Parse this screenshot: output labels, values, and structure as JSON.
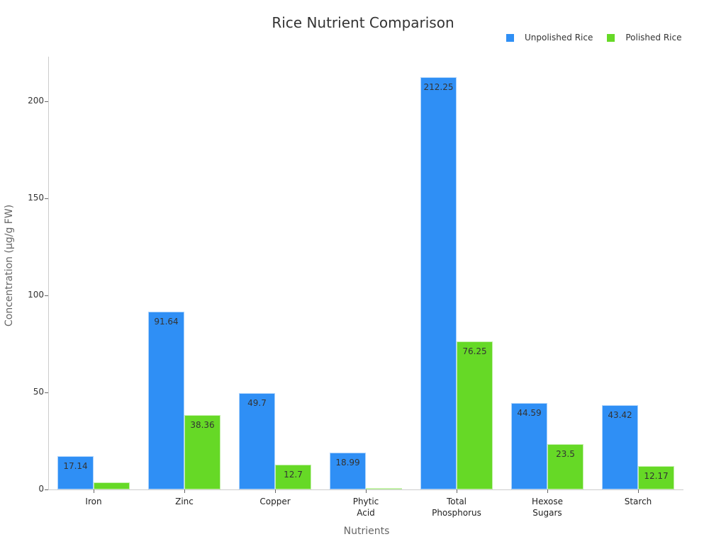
{
  "chart_data": {
    "type": "bar",
    "title": "Rice Nutrient Comparison",
    "xlabel": "Nutrients",
    "ylabel": "Concentration (µg/g FW)",
    "categories": [
      "Iron",
      "Zinc",
      "Copper",
      "Phytic Acid",
      "Total Phosphorus",
      "Hexose Sugars",
      "Starch"
    ],
    "category_lines": [
      [
        "Iron"
      ],
      [
        "Zinc"
      ],
      [
        "Copper"
      ],
      [
        "Phytic",
        "Acid"
      ],
      [
        "Total",
        "Phosphorus"
      ],
      [
        "Hexose",
        "Sugars"
      ],
      [
        "Starch"
      ]
    ],
    "series": [
      {
        "name": "Unpolished Rice",
        "color": "#2f8ff5",
        "values": [
          17.14,
          91.64,
          49.7,
          18.99,
          212.25,
          44.59,
          43.42
        ],
        "labels": [
          "17.14",
          "91.64",
          "49.7",
          "18.99",
          "212.25",
          "44.59",
          "43.42"
        ]
      },
      {
        "name": "Polished Rice",
        "color": "#66d926",
        "values": [
          3.5,
          38.36,
          12.7,
          0.7,
          76.25,
          23.5,
          12.17
        ],
        "labels": [
          "3.5",
          "38.36",
          "12.7",
          "0.7",
          "76.25",
          "23.5",
          "12.17"
        ]
      }
    ],
    "yticks": [
      0,
      50,
      100,
      150,
      200
    ],
    "ylim": [
      0,
      223
    ],
    "grid": false,
    "legend_position": "top-right"
  }
}
